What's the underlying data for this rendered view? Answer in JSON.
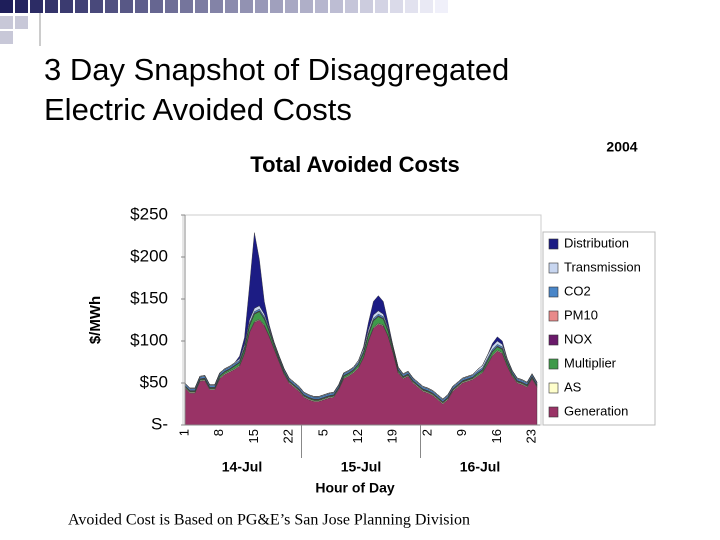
{
  "slide": {
    "title_lines": [
      "3 Day Snapshot of Disaggregated",
      "Electric Avoided Costs"
    ],
    "year_label": "2004",
    "footnote": "Avoided Cost is Based on PG&E’s San Jose Planning Division"
  },
  "chart_data": {
    "type": "stacked-area",
    "title": "Total Avoided Costs",
    "y_label": "$/MWh",
    "x_label": "Hour of Day",
    "date_labels": [
      "14-Jul",
      "15-Jul",
      "16-Jul"
    ],
    "categories": [
      "1",
      null,
      null,
      null,
      null,
      null,
      null,
      "8",
      null,
      null,
      null,
      null,
      null,
      null,
      "15",
      null,
      null,
      null,
      null,
      null,
      null,
      "22",
      null,
      null,
      null,
      null,
      null,
      null,
      "5",
      null,
      null,
      null,
      null,
      null,
      null,
      "12",
      null,
      null,
      null,
      null,
      null,
      null,
      "19",
      null,
      null,
      null,
      null,
      null,
      null,
      "2",
      null,
      null,
      null,
      null,
      null,
      null,
      "9",
      null,
      null,
      null,
      null,
      null,
      null,
      "16",
      null,
      null,
      null,
      null,
      null,
      null,
      "23",
      null
    ],
    "ylim": [
      0,
      250
    ],
    "yticks": [
      {
        "value": 250,
        "label": "$250"
      },
      {
        "value": 200,
        "label": "$200"
      },
      {
        "value": 150,
        "label": "$150"
      },
      {
        "value": 100,
        "label": "$100"
      },
      {
        "value": 50,
        "label": "$50"
      },
      {
        "value": 0,
        "label": "S-"
      }
    ],
    "series": [
      {
        "name": "Distribution",
        "color": "#1c1c84",
        "values": [
          0,
          0,
          0,
          0,
          0,
          0,
          0,
          0,
          0,
          0,
          0,
          3,
          8,
          40,
          90,
          55,
          15,
          3,
          0,
          0,
          0,
          0,
          0,
          0,
          0,
          0,
          0,
          0,
          0,
          0,
          0,
          0,
          0,
          0,
          0,
          0,
          2,
          8,
          16,
          18,
          15,
          5,
          0,
          0,
          0,
          0,
          0,
          0,
          0,
          0,
          0,
          0,
          0,
          0,
          0,
          0,
          0,
          0,
          0,
          0,
          0,
          0,
          3,
          5,
          4,
          0,
          0,
          0,
          0,
          0,
          0,
          0
        ]
      },
      {
        "name": "Transmission",
        "color": "#c8d6f0",
        "values": [
          1,
          1,
          1,
          1,
          1,
          1,
          1,
          1,
          1,
          1,
          1,
          2,
          3,
          4,
          4,
          4,
          3,
          2,
          1,
          1,
          1,
          1,
          1,
          1,
          1,
          1,
          1,
          1,
          1,
          1,
          1,
          1,
          1,
          1,
          1,
          2,
          3,
          4,
          4,
          4,
          3,
          2,
          1,
          1,
          1,
          1,
          1,
          1,
          1,
          1,
          1,
          1,
          1,
          1,
          1,
          1,
          1,
          1,
          1,
          2,
          3,
          4,
          4,
          4,
          3,
          2,
          1,
          1,
          1,
          1,
          1,
          1
        ]
      },
      {
        "name": "CO2",
        "color": "#4a86c8",
        "values": [
          2,
          2,
          2,
          2,
          2,
          2,
          2,
          2,
          2,
          2,
          2,
          2,
          2,
          2,
          2,
          2,
          2,
          2,
          2,
          2,
          2,
          2,
          2,
          2,
          2,
          2,
          2,
          2,
          2,
          2,
          2,
          2,
          2,
          2,
          2,
          2,
          2,
          2,
          2,
          2,
          2,
          2,
          2,
          2,
          2,
          2,
          2,
          2,
          2,
          2,
          2,
          2,
          2,
          2,
          2,
          2,
          2,
          2,
          2,
          2,
          2,
          2,
          2,
          2,
          2,
          2,
          2,
          2,
          2,
          2,
          2,
          2
        ]
      },
      {
        "name": "PM10",
        "color": "#e88a8a",
        "values": [
          0.5,
          0.5,
          0.5,
          0.5,
          0.5,
          0.5,
          0.5,
          0.5,
          0.5,
          0.5,
          0.5,
          0.5,
          0.5,
          0.5,
          0.5,
          0.5,
          0.5,
          0.5,
          0.5,
          0.5,
          0.5,
          0.5,
          0.5,
          0.5,
          0.5,
          0.5,
          0.5,
          0.5,
          0.5,
          0.5,
          0.5,
          0.5,
          0.5,
          0.5,
          0.5,
          0.5,
          0.5,
          0.5,
          0.5,
          0.5,
          0.5,
          0.5,
          0.5,
          0.5,
          0.5,
          0.5,
          0.5,
          0.5,
          0.5,
          0.5,
          0.5,
          0.5,
          0.5,
          0.5,
          0.5,
          0.5,
          0.5,
          0.5,
          0.5,
          0.5,
          0.5,
          0.5,
          0.5,
          0.5,
          0.5,
          0.5,
          0.5,
          0.5,
          0.5,
          0.5,
          0.5,
          0.5
        ]
      },
      {
        "name": "NOX",
        "color": "#6a1a6a",
        "values": [
          0.5,
          0.5,
          0.5,
          0.5,
          0.5,
          0.5,
          0.5,
          0.5,
          0.5,
          0.5,
          0.5,
          0.5,
          0.5,
          0.5,
          0.5,
          0.5,
          0.5,
          0.5,
          0.5,
          0.5,
          0.5,
          0.5,
          0.5,
          0.5,
          0.5,
          0.5,
          0.5,
          0.5,
          0.5,
          0.5,
          0.5,
          0.5,
          0.5,
          0.5,
          0.5,
          0.5,
          0.5,
          0.5,
          0.5,
          0.5,
          0.5,
          0.5,
          0.5,
          0.5,
          0.5,
          0.5,
          0.5,
          0.5,
          0.5,
          0.5,
          0.5,
          0.5,
          0.5,
          0.5,
          0.5,
          0.5,
          0.5,
          0.5,
          0.5,
          0.5,
          0.5,
          0.5,
          0.5,
          0.5,
          0.5,
          0.5,
          0.5,
          0.5,
          0.5,
          0.5,
          0.5,
          0.5
        ]
      },
      {
        "name": "Multiplier",
        "color": "#3f9a4a",
        "values": [
          1,
          1,
          1,
          1,
          1,
          1,
          1,
          2,
          2,
          2,
          3,
          3,
          4,
          7,
          9,
          9,
          7,
          5,
          3,
          2,
          2,
          1,
          1,
          1,
          1,
          1,
          1,
          1,
          1,
          1,
          1,
          1,
          2,
          2,
          2,
          3,
          4,
          6,
          8,
          8,
          7,
          5,
          3,
          2,
          1,
          1,
          1,
          1,
          1,
          1,
          1,
          1,
          1,
          1,
          1,
          1,
          1,
          1,
          1,
          2,
          2,
          3,
          4,
          4,
          4,
          3,
          2,
          1,
          1,
          1,
          1,
          1
        ]
      },
      {
        "name": "AS",
        "color": "#ffffcc",
        "values": [
          1,
          1,
          1,
          1,
          1,
          1,
          1,
          1,
          1,
          1,
          1,
          1,
          1,
          1,
          1,
          1,
          1,
          1,
          1,
          1,
          1,
          1,
          1,
          1,
          1,
          1,
          1,
          1,
          1,
          1,
          1,
          1,
          1,
          1,
          1,
          1,
          1,
          1,
          1,
          1,
          1,
          1,
          1,
          1,
          1,
          1,
          1,
          1,
          1,
          1,
          1,
          1,
          1,
          1,
          1,
          1,
          1,
          1,
          1,
          1,
          1,
          1,
          1,
          1,
          1,
          1,
          1,
          1,
          1,
          1,
          1,
          1
        ]
      },
      {
        "name": "Generation",
        "color": "#993366",
        "values": [
          44,
          38,
          38,
          52,
          53,
          42,
          42,
          55,
          60,
          63,
          66,
          70,
          85,
          110,
          122,
          125,
          118,
          105,
          90,
          75,
          60,
          50,
          45,
          40,
          33,
          30,
          28,
          28,
          30,
          32,
          33,
          42,
          55,
          58,
          62,
          68,
          80,
          100,
          115,
          120,
          118,
          105,
          85,
          62,
          55,
          58,
          50,
          45,
          40,
          38,
          35,
          30,
          25,
          30,
          40,
          45,
          50,
          52,
          54,
          58,
          62,
          72,
          82,
          88,
          85,
          70,
          58,
          50,
          48,
          45,
          55,
          45
        ]
      }
    ]
  }
}
